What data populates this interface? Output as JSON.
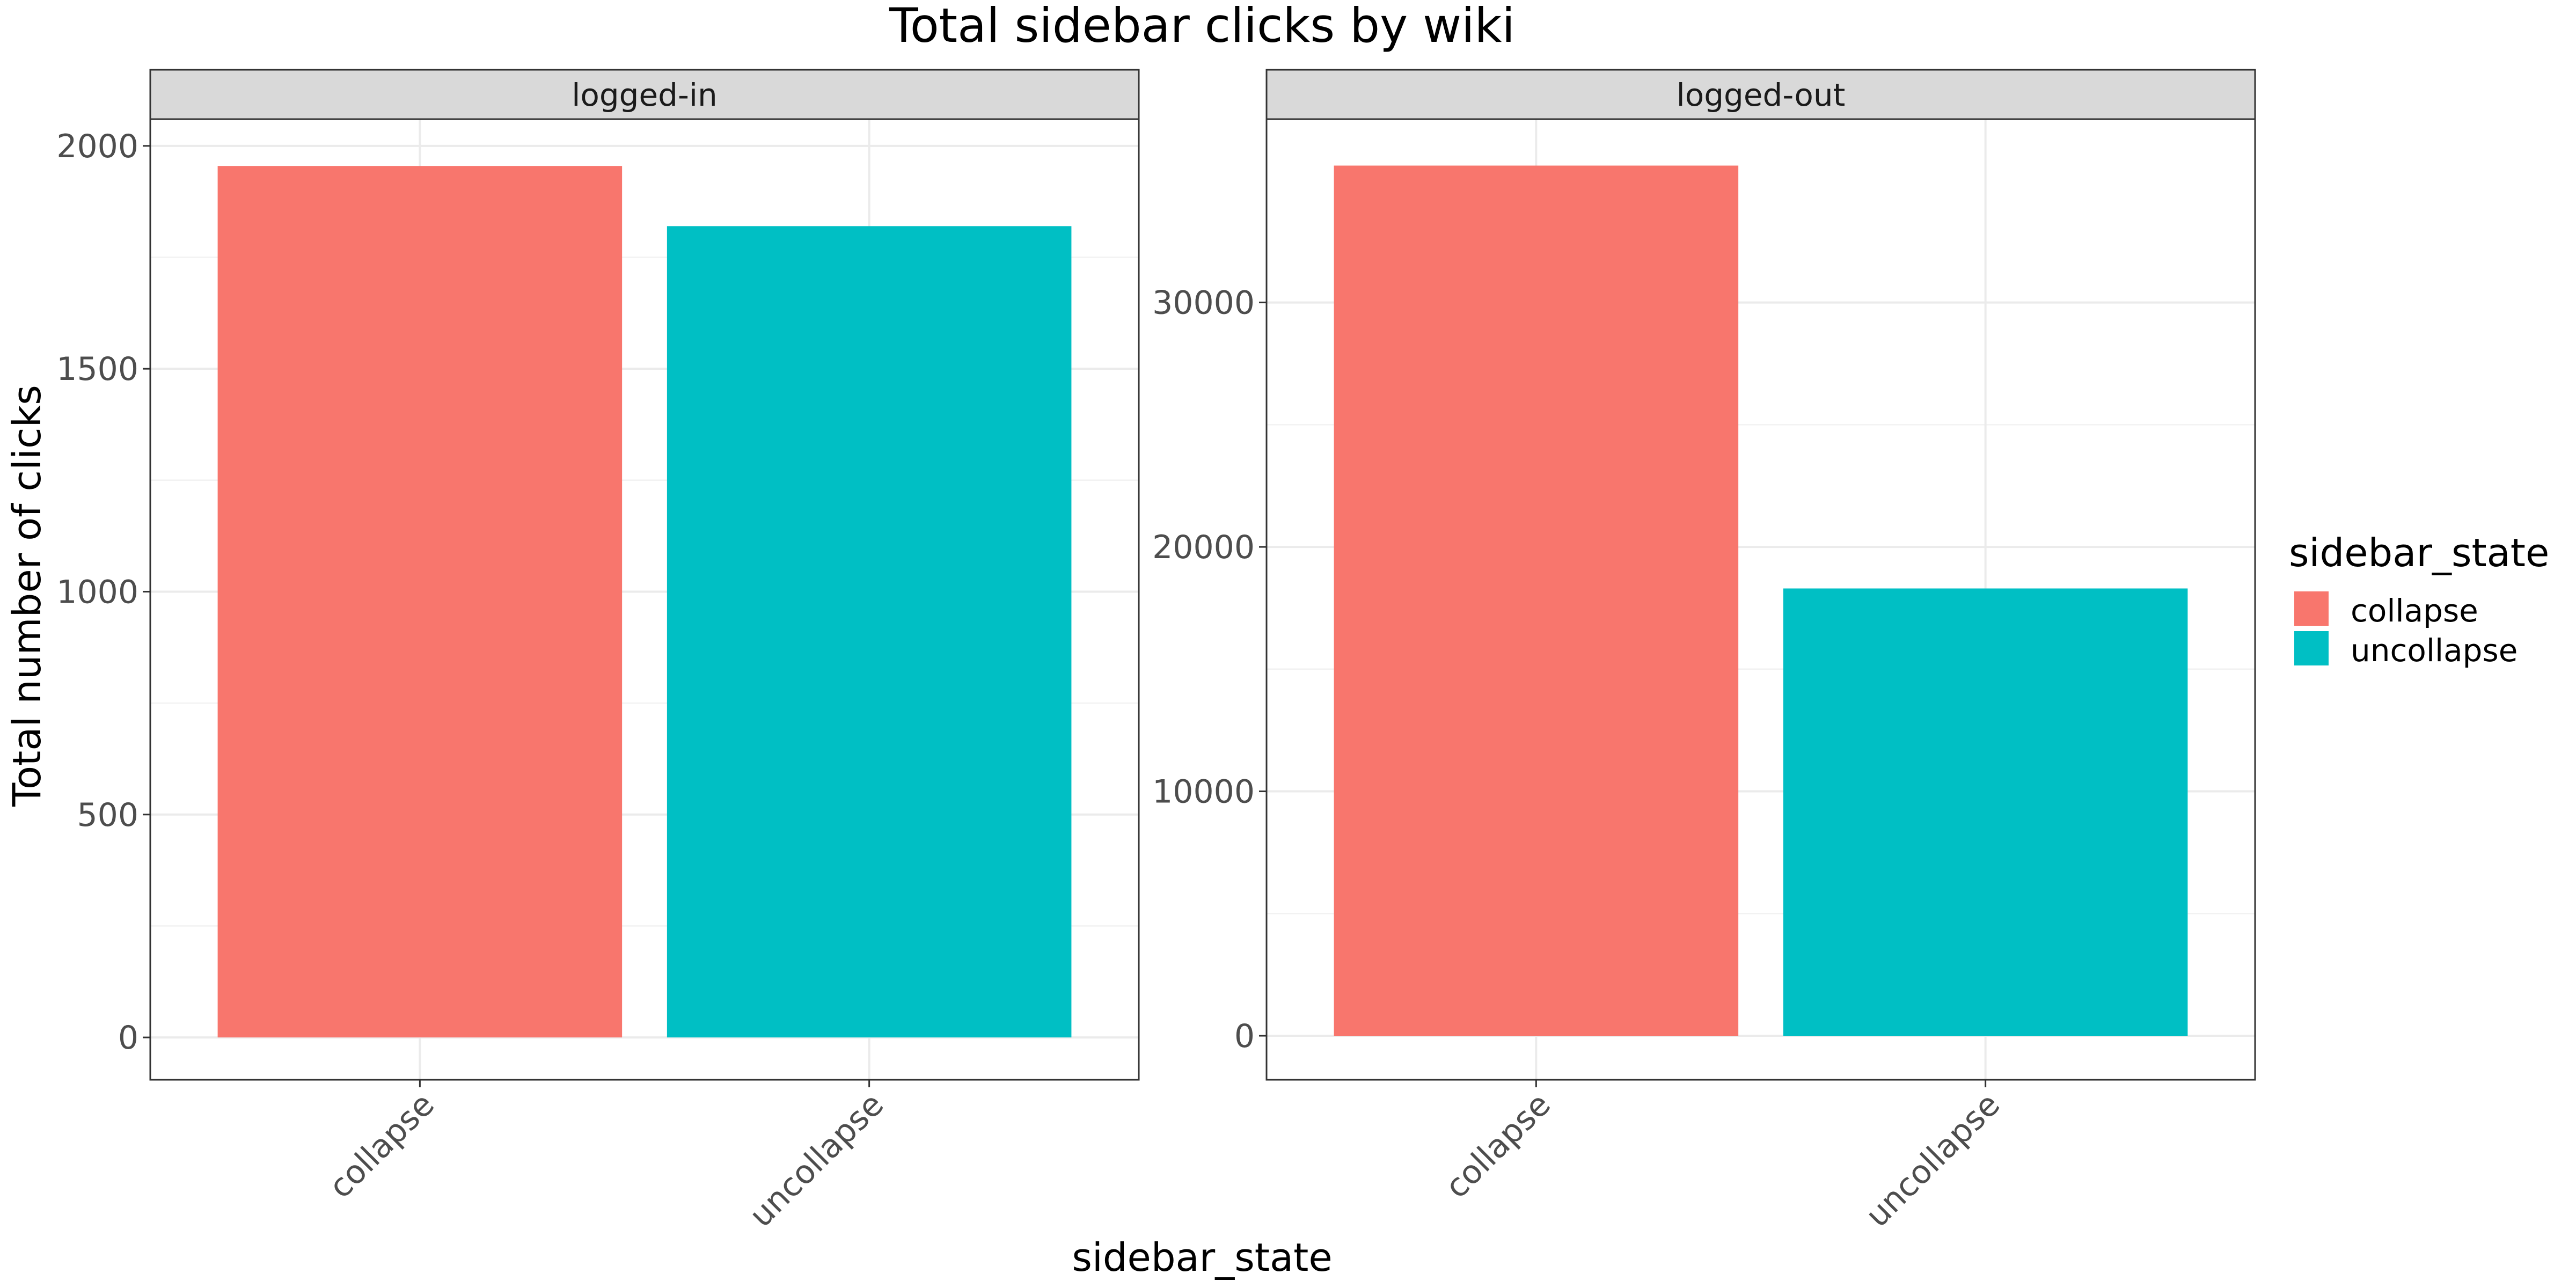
{
  "chart_data": {
    "type": "bar",
    "title": "Total sidebar clicks by wiki",
    "xlabel": "sidebar_state",
    "ylabel": "Total number of clicks",
    "categories": [
      "collapse",
      "uncollapse"
    ],
    "legend": {
      "title": "sidebar_state",
      "position": "right",
      "items": [
        {
          "label": "collapse",
          "color": "#F8766D"
        },
        {
          "label": "uncollapse",
          "color": "#00BFC4"
        }
      ]
    },
    "grid": true,
    "facets": [
      {
        "label": "logged-in",
        "values": [
          1955,
          1820
        ],
        "ylim": [
          -95,
          2060
        ],
        "ticks": [
          0,
          500,
          1000,
          1500,
          2000
        ],
        "tick_labels": [
          "0",
          "500",
          "1000",
          "1500",
          "2000"
        ]
      },
      {
        "label": "logged-out",
        "values": [
          35600,
          18300
        ],
        "ylim": [
          -1800,
          37500
        ],
        "ticks": [
          0,
          10000,
          20000,
          30000
        ],
        "tick_labels": [
          "0",
          "10000",
          "20000",
          "30000"
        ]
      }
    ]
  }
}
